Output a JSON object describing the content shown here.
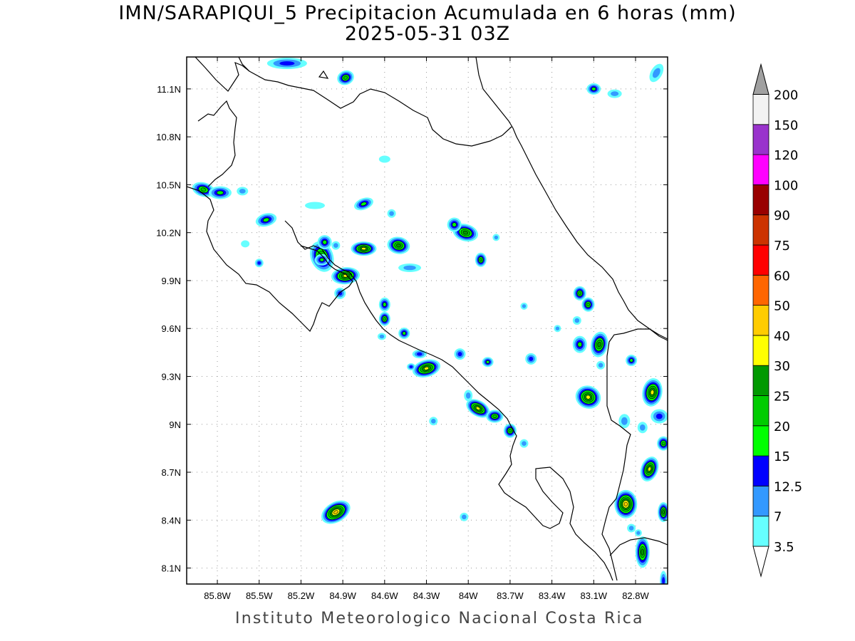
{
  "title": "IMN/SARAPIQUI_5 Precipitacion Acumulada en 6 horas (mm)",
  "subtitle": "2025-05-31 03Z",
  "footer": "Instituto Meteorologico Nacional Costa Rica",
  "map": {
    "lon_range": [
      -86.02,
      -82.57
    ],
    "lat_range": [
      8.0,
      11.3
    ],
    "grid": "dotted",
    "lon_ticks": [
      {
        "value": -85.8,
        "label": "85.8W"
      },
      {
        "value": -85.5,
        "label": "85.5W"
      },
      {
        "value": -85.2,
        "label": "85.2W"
      },
      {
        "value": -84.9,
        "label": "84.9W"
      },
      {
        "value": -84.6,
        "label": "84.6W"
      },
      {
        "value": -84.3,
        "label": "84.3W"
      },
      {
        "value": -84.0,
        "label": "84W"
      },
      {
        "value": -83.7,
        "label": "83.7W"
      },
      {
        "value": -83.4,
        "label": "83.4W"
      },
      {
        "value": -83.1,
        "label": "83.1W"
      },
      {
        "value": -82.8,
        "label": "82.8W"
      }
    ],
    "lat_ticks": [
      {
        "value": 11.1,
        "label": "11.1N"
      },
      {
        "value": 10.8,
        "label": "10.8N"
      },
      {
        "value": 10.5,
        "label": "10.5N"
      },
      {
        "value": 10.2,
        "label": "10.2N"
      },
      {
        "value": 9.9,
        "label": "9.9N"
      },
      {
        "value": 9.6,
        "label": "9.6N"
      },
      {
        "value": 9.3,
        "label": "9.3N"
      },
      {
        "value": 9.0,
        "label": "9N"
      },
      {
        "value": 8.7,
        "label": "8.7N"
      },
      {
        "value": 8.4,
        "label": "8.4N"
      },
      {
        "value": 8.1,
        "label": "8.1N"
      }
    ]
  },
  "colorbar": {
    "labels": [
      "3.5",
      "7",
      "12.5",
      "15",
      "20",
      "25",
      "30",
      "40",
      "50",
      "60",
      "75",
      "90",
      "100",
      "120",
      "150",
      "200"
    ],
    "colors": [
      "#66ffff",
      "#3399ff",
      "#0000ff",
      "#00ff00",
      "#00cc00",
      "#009900",
      "#ffff00",
      "#ffcc00",
      "#ff6600",
      "#ff0000",
      "#cc3300",
      "#990000",
      "#ff00ff",
      "#9933cc",
      "#f2f2f2",
      "#a0a0a0"
    ]
  },
  "chart_data": {
    "type": "heatmap",
    "variable": "Precipitacion Acumulada en 6 horas (mm)",
    "levels": [
      3.5,
      7,
      12.5,
      15,
      20,
      25,
      30,
      40,
      50,
      60,
      75,
      90,
      100,
      120,
      150,
      200
    ],
    "cells": [
      {
        "lon": -84.95,
        "lat": 8.45,
        "peak": 40
      },
      {
        "lon": -84.3,
        "lat": 9.35,
        "peak": 30
      },
      {
        "lon": -84.75,
        "lat": 10.1,
        "peak": 30
      },
      {
        "lon": -84.88,
        "lat": 9.93,
        "peak": 30
      },
      {
        "lon": -85.05,
        "lat": 10.05,
        "peak": 25
      },
      {
        "lon": -84.5,
        "lat": 10.12,
        "peak": 25
      },
      {
        "lon": -84.02,
        "lat": 10.2,
        "peak": 25
      },
      {
        "lon": -83.93,
        "lat": 9.1,
        "peak": 30
      },
      {
        "lon": -83.06,
        "lat": 9.5,
        "peak": 25
      },
      {
        "lon": -83.14,
        "lat": 9.17,
        "peak": 30
      },
      {
        "lon": -82.87,
        "lat": 8.5,
        "peak": 40
      },
      {
        "lon": -82.68,
        "lat": 9.2,
        "peak": 30
      },
      {
        "lon": -82.7,
        "lat": 8.72,
        "peak": 30
      },
      {
        "lon": -82.75,
        "lat": 8.2,
        "peak": 25
      },
      {
        "lon": -85.9,
        "lat": 10.47,
        "peak": 20
      }
    ]
  }
}
